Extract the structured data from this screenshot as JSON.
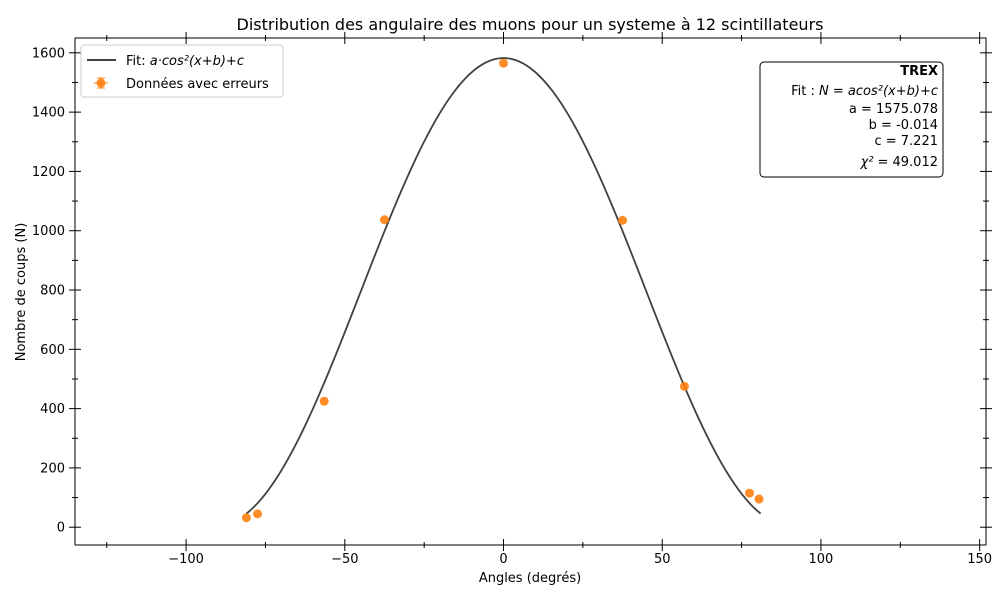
{
  "chart_data": {
    "type": "scatter",
    "title": "Distribution des angulaire des muons pour un systeme à 12 scintillateurs",
    "xlabel": "Angles (degrés)",
    "ylabel": "Nombre de coups (N)",
    "xlim": [
      -135,
      152
    ],
    "ylim": [
      -60,
      1650
    ],
    "xticks": [
      -100,
      -50,
      0,
      50,
      100,
      150
    ],
    "xtick_labels": [
      "−100",
      "−50",
      "0",
      "50",
      "100",
      "150"
    ],
    "yticks": [
      0,
      200,
      400,
      600,
      800,
      1000,
      1200,
      1400,
      1600
    ],
    "ytick_labels": [
      "0",
      "200",
      "400",
      "600",
      "800",
      "1000",
      "1200",
      "1400",
      "1600"
    ],
    "grid": false,
    "legend_position": "top-left",
    "series": [
      {
        "name": "Données avec erreurs",
        "kind": "scatter-errorbar",
        "color": "#ff7f0e",
        "x": [
          -81,
          -77.5,
          -56.5,
          -37.5,
          0,
          37.5,
          57,
          77.5,
          80.5
        ],
        "y": [
          32,
          45,
          425,
          1037,
          1565,
          1035,
          475,
          115,
          95
        ]
      },
      {
        "name": "Fit: a·cos²(x+b)+c",
        "legend_prefix": "Fit: ",
        "legend_formula": "a·cos²(x+b)+c",
        "kind": "fit-curve",
        "color": "#404040",
        "x_range": [
          -81,
          81
        ],
        "params": {
          "a": 1575.078,
          "b": -0.014,
          "c": 7.221
        }
      }
    ],
    "annotation": {
      "title": "TREX",
      "line_fit_prefix": "Fit : ",
      "line_fit_formula": "N = acos²(x+b)+c",
      "line_a": "a = 1575.078",
      "line_b": "b = -0.014",
      "line_c": "c = 7.221",
      "line_chi2_label": "χ²",
      "line_chi2_value": "=  49.012",
      "position": "top-right"
    }
  }
}
